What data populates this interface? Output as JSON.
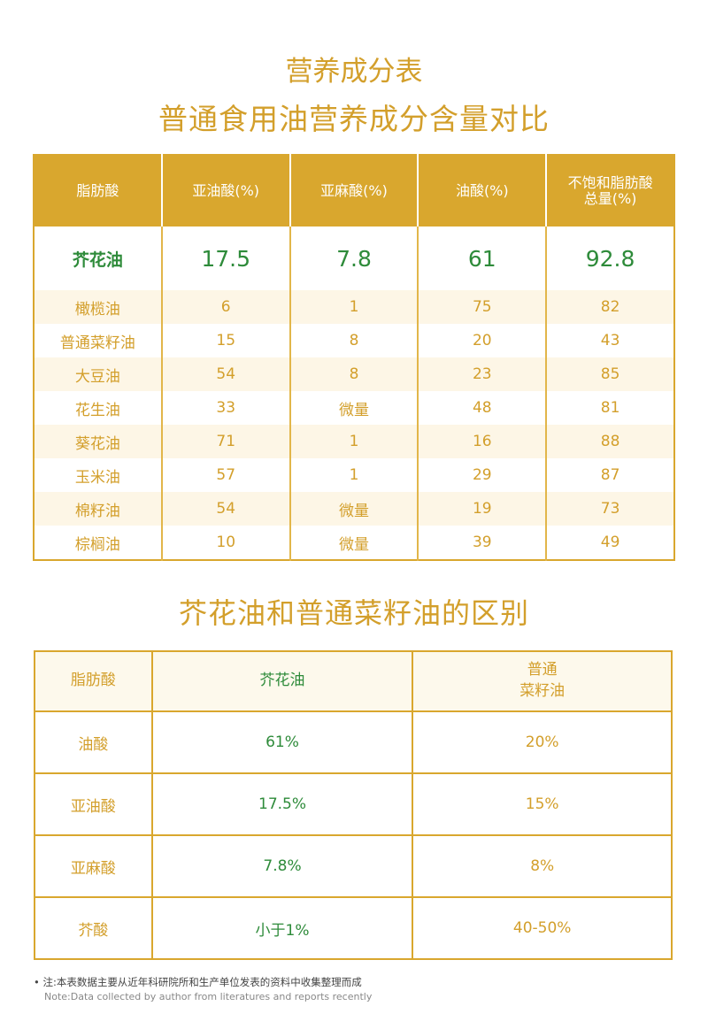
{
  "title": "营养成分表",
  "subtitle": "普通食用油营养成分含量对比",
  "table1": {
    "headers": [
      "脂肪酸",
      "亚油酸(%)",
      "亚麻酸(%)",
      "油酸(%)",
      "不饱和脂肪酸\n总量(%)"
    ],
    "rows": [
      [
        "芥花油",
        "17.5",
        "7.8",
        "61",
        "92.8"
      ],
      [
        "橄榄油",
        "6",
        "1",
        "75",
        "82"
      ],
      [
        "普通菜籽油",
        "15",
        "8",
        "20",
        "43"
      ],
      [
        "大豆油",
        "54",
        "8",
        "23",
        "85"
      ],
      [
        "花生油",
        "33",
        "微量",
        "48",
        "81"
      ],
      [
        "葵花油",
        "71",
        "1",
        "16",
        "88"
      ],
      [
        "玉米油",
        "57",
        "1",
        "29",
        "87"
      ],
      [
        "棉籽油",
        "54",
        "微量",
        "19",
        "73"
      ],
      [
        "棕榈油",
        "10",
        "微量",
        "39",
        "49"
      ]
    ]
  },
  "section2_title": "芥花油和普通菜籽油的区别",
  "table2": {
    "headers": [
      "脂肪酸",
      "芥花油",
      "普通\n菜籽油"
    ],
    "rows": [
      [
        "油酸",
        "61%",
        "20%"
      ],
      [
        "亚油酸",
        "17.5%",
        "15%"
      ],
      [
        "亚麻酸",
        "7.8%",
        "8%"
      ],
      [
        "芥酸",
        "小于1%",
        "40-50%"
      ]
    ]
  },
  "note_cn": "• 注:本表数据主要从近年科研院所和生产单位发表的资料中收集整理而成",
  "note_en": "Note:Data collected by author from literatures and reports recently",
  "colors": {
    "gold": "#d9a72e",
    "green": "#2e8b3a",
    "cream": "#fdf6e6"
  }
}
